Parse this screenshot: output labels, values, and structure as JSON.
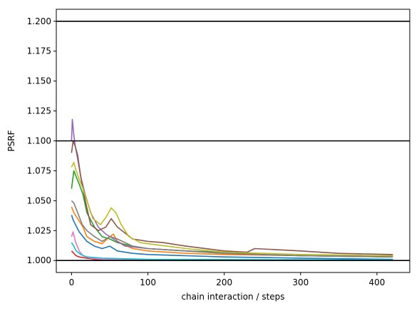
{
  "chart_data": {
    "type": "line",
    "xlabel": "chain interaction / steps",
    "ylabel": "PSRF",
    "xlim": [
      -20,
      443
    ],
    "ylim": [
      0.99,
      1.21
    ],
    "xticks": [
      0,
      100,
      200,
      300,
      400
    ],
    "xtick_labels": [
      "0",
      "100",
      "200",
      "300",
      "400"
    ],
    "yticks": [
      1.0,
      1.025,
      1.05,
      1.075,
      1.1,
      1.125,
      1.15,
      1.175,
      1.2
    ],
    "ytick_labels": [
      "1.000",
      "1.025",
      "1.050",
      "1.075",
      "1.100",
      "1.125",
      "1.150",
      "1.175",
      "1.200"
    ],
    "hlines": [
      1.0,
      1.1,
      1.2
    ],
    "grid": false,
    "series": [
      {
        "color": "#1f77b4",
        "points": [
          [
            0,
            1.038
          ],
          [
            2,
            1.034
          ],
          [
            5,
            1.03
          ],
          [
            10,
            1.024
          ],
          [
            15,
            1.02
          ],
          [
            20,
            1.016
          ],
          [
            30,
            1.012
          ],
          [
            40,
            1.01
          ],
          [
            50,
            1.012
          ],
          [
            60,
            1.008
          ],
          [
            80,
            1.006
          ],
          [
            100,
            1.005
          ],
          [
            150,
            1.004
          ],
          [
            200,
            1.003
          ],
          [
            300,
            1.002
          ],
          [
            421,
            1.001
          ]
        ]
      },
      {
        "color": "#ff7f0e",
        "points": [
          [
            0,
            1.045
          ],
          [
            3,
            1.04
          ],
          [
            8,
            1.035
          ],
          [
            15,
            1.028
          ],
          [
            20,
            1.02
          ],
          [
            30,
            1.016
          ],
          [
            40,
            1.014
          ],
          [
            50,
            1.02
          ],
          [
            55,
            1.022
          ],
          [
            60,
            1.016
          ],
          [
            80,
            1.01
          ],
          [
            100,
            1.008
          ],
          [
            150,
            1.006
          ],
          [
            200,
            1.005
          ],
          [
            300,
            1.004
          ],
          [
            421,
            1.003
          ]
        ]
      },
      {
        "color": "#2ca02c",
        "points": [
          [
            0,
            1.06
          ],
          [
            3,
            1.075
          ],
          [
            6,
            1.07
          ],
          [
            10,
            1.064
          ],
          [
            15,
            1.055
          ],
          [
            20,
            1.04
          ],
          [
            30,
            1.028
          ],
          [
            40,
            1.02
          ],
          [
            50,
            1.018
          ],
          [
            60,
            1.015
          ],
          [
            80,
            1.012
          ],
          [
            100,
            1.01
          ],
          [
            150,
            1.008
          ],
          [
            200,
            1.007
          ],
          [
            250,
            1.005
          ],
          [
            300,
            1.004
          ],
          [
            421,
            1.003
          ]
        ]
      },
      {
        "color": "#d62728",
        "points": [
          [
            0,
            1.008
          ],
          [
            3,
            1.006
          ],
          [
            6,
            1.004
          ],
          [
            10,
            1.003
          ],
          [
            20,
            1.002
          ],
          [
            30,
            1.001
          ],
          [
            50,
            1.0005
          ],
          [
            100,
            1.0003
          ],
          [
            421,
            1.0001
          ]
        ]
      },
      {
        "color": "#9467bd",
        "points": [
          [
            0,
            1.1
          ],
          [
            1,
            1.118
          ],
          [
            3,
            1.105
          ],
          [
            5,
            1.095
          ],
          [
            8,
            1.085
          ],
          [
            12,
            1.07
          ],
          [
            18,
            1.055
          ],
          [
            25,
            1.04
          ],
          [
            35,
            1.028
          ],
          [
            45,
            1.022
          ],
          [
            55,
            1.018
          ],
          [
            70,
            1.012
          ],
          [
            100,
            1.01
          ],
          [
            150,
            1.008
          ],
          [
            200,
            1.006
          ],
          [
            300,
            1.004
          ],
          [
            421,
            1.004
          ]
        ]
      },
      {
        "color": "#8c564b",
        "points": [
          [
            0,
            1.09
          ],
          [
            2,
            1.1
          ],
          [
            5,
            1.095
          ],
          [
            8,
            1.088
          ],
          [
            12,
            1.07
          ],
          [
            18,
            1.05
          ],
          [
            25,
            1.03
          ],
          [
            35,
            1.025
          ],
          [
            45,
            1.028
          ],
          [
            52,
            1.035
          ],
          [
            60,
            1.028
          ],
          [
            80,
            1.018
          ],
          [
            100,
            1.016
          ],
          [
            120,
            1.015
          ],
          [
            150,
            1.012
          ],
          [
            200,
            1.008
          ],
          [
            230,
            1.007
          ],
          [
            240,
            1.01
          ],
          [
            300,
            1.008
          ],
          [
            350,
            1.006
          ],
          [
            421,
            1.005
          ]
        ]
      },
      {
        "color": "#e377c2",
        "points": [
          [
            0,
            1.02
          ],
          [
            2,
            1.024
          ],
          [
            5,
            1.016
          ],
          [
            10,
            1.008
          ],
          [
            15,
            1.004
          ],
          [
            25,
            1.002
          ],
          [
            40,
            1.001
          ],
          [
            80,
            1.0005
          ],
          [
            421,
            1.0002
          ]
        ]
      },
      {
        "color": "#7f7f7f",
        "points": [
          [
            0,
            1.05
          ],
          [
            3,
            1.048
          ],
          [
            8,
            1.04
          ],
          [
            14,
            1.03
          ],
          [
            20,
            1.025
          ],
          [
            30,
            1.02
          ],
          [
            40,
            1.016
          ],
          [
            50,
            1.02
          ],
          [
            60,
            1.018
          ],
          [
            80,
            1.012
          ],
          [
            100,
            1.01
          ],
          [
            150,
            1.008
          ],
          [
            200,
            1.006
          ],
          [
            300,
            1.004
          ],
          [
            421,
            1.003
          ]
        ]
      },
      {
        "color": "#bcbd22",
        "points": [
          [
            0,
            1.078
          ],
          [
            3,
            1.082
          ],
          [
            6,
            1.075
          ],
          [
            10,
            1.068
          ],
          [
            15,
            1.06
          ],
          [
            20,
            1.05
          ],
          [
            28,
            1.035
          ],
          [
            38,
            1.03
          ],
          [
            45,
            1.036
          ],
          [
            52,
            1.044
          ],
          [
            58,
            1.04
          ],
          [
            65,
            1.03
          ],
          [
            75,
            1.02
          ],
          [
            90,
            1.015
          ],
          [
            100,
            1.014
          ],
          [
            150,
            1.01
          ],
          [
            200,
            1.007
          ],
          [
            300,
            1.005
          ],
          [
            421,
            1.004
          ]
        ]
      },
      {
        "color": "#17becf",
        "points": [
          [
            0,
            1.015
          ],
          [
            3,
            1.012
          ],
          [
            6,
            1.008
          ],
          [
            12,
            1.005
          ],
          [
            20,
            1.003
          ],
          [
            40,
            1.002
          ],
          [
            100,
            1.001
          ],
          [
            421,
            1.0005
          ]
        ]
      }
    ]
  }
}
